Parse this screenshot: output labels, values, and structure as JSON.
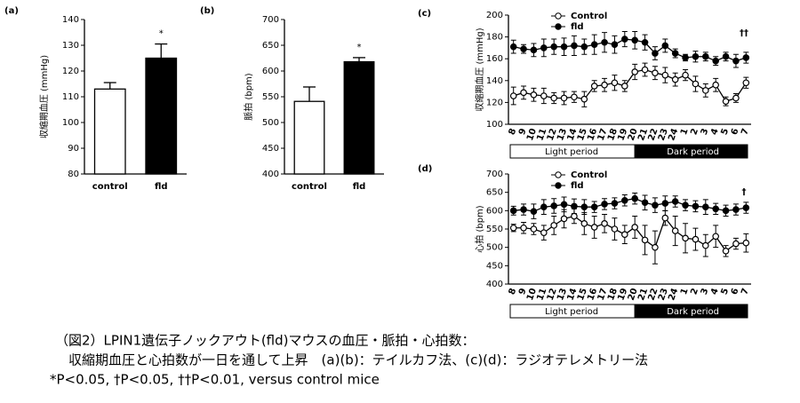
{
  "chart_data": [
    {
      "type": "bar",
      "panel_label": "(a)",
      "y_label": "収縮期血圧 (mmHg)",
      "categories": [
        "control",
        "fld"
      ],
      "values": [
        113,
        125
      ],
      "errors": [
        2.5,
        5.5
      ],
      "colors": [
        "#ffffff",
        "#000000"
      ],
      "ylim": [
        80,
        140
      ],
      "yticks": [
        80,
        90,
        100,
        110,
        120,
        130,
        140
      ],
      "annotation": "*"
    },
    {
      "type": "bar",
      "panel_label": "(b)",
      "y_label": "脈拍 (bpm)",
      "categories": [
        "control",
        "fld"
      ],
      "values": [
        541,
        618
      ],
      "errors": [
        28,
        8
      ],
      "colors": [
        "#ffffff",
        "#000000"
      ],
      "ylim": [
        400,
        700
      ],
      "yticks": [
        400,
        450,
        500,
        550,
        600,
        650,
        700
      ],
      "annotation": "*"
    },
    {
      "type": "line",
      "panel_label": "(c)",
      "y_label": "収縮期血圧 (mmHg)",
      "categories": [
        "8",
        "9",
        "10",
        "11",
        "12",
        "13",
        "14",
        "15",
        "16",
        "17",
        "18",
        "19",
        "20",
        "21",
        "22",
        "23",
        "24",
        "1",
        "2",
        "3",
        "4",
        "5",
        "6",
        "7"
      ],
      "series": [
        {
          "name": "Control",
          "color": "#000000",
          "marker": "open",
          "values": [
            126,
            129,
            127,
            126,
            124,
            124,
            125,
            123,
            135,
            136,
            138,
            135,
            148,
            150,
            147,
            145,
            141,
            145,
            137,
            131,
            136,
            121,
            124,
            138
          ],
          "errors": [
            8,
            6,
            6,
            7,
            5,
            6,
            5,
            7,
            5,
            6,
            7,
            5,
            7,
            6,
            6,
            7,
            6,
            5,
            7,
            6,
            6,
            4,
            4,
            5
          ]
        },
        {
          "name": "fld",
          "color": "#000000",
          "marker": "filled",
          "values": [
            171,
            169,
            168,
            170,
            171,
            171,
            172,
            171,
            173,
            175,
            173,
            178,
            177,
            175,
            165,
            172,
            165,
            161,
            162,
            162,
            158,
            162,
            158,
            161
          ],
          "errors": [
            6,
            4,
            6,
            8,
            7,
            8,
            9,
            7,
            9,
            9,
            8,
            7,
            8,
            7,
            6,
            6,
            4,
            3,
            5,
            4,
            4,
            4,
            6,
            5
          ]
        }
      ],
      "periods": [
        "Light period",
        "Dark period"
      ],
      "ylim": [
        100,
        200
      ],
      "yticks": [
        100,
        120,
        140,
        160,
        180,
        200
      ],
      "annotation": "††"
    },
    {
      "type": "line",
      "panel_label": "(d)",
      "y_label": "心拍 (bpm)",
      "categories": [
        "8",
        "9",
        "10",
        "11",
        "12",
        "13",
        "14",
        "15",
        "16",
        "17",
        "18",
        "19",
        "20",
        "21",
        "22",
        "23",
        "24",
        "1",
        "2",
        "3",
        "4",
        "5",
        "6",
        "7"
      ],
      "series": [
        {
          "name": "Control",
          "color": "#000000",
          "marker": "open",
          "values": [
            553,
            553,
            550,
            540,
            560,
            578,
            585,
            565,
            555,
            565,
            550,
            535,
            555,
            520,
            500,
            580,
            545,
            525,
            522,
            505,
            530,
            490,
            510,
            512
          ],
          "errors": [
            10,
            15,
            15,
            20,
            25,
            25,
            20,
            30,
            30,
            25,
            30,
            25,
            30,
            40,
            45,
            20,
            40,
            40,
            30,
            30,
            30,
            15,
            15,
            25
          ]
        },
        {
          "name": "fld",
          "color": "#000000",
          "marker": "filled",
          "values": [
            600,
            603,
            598,
            610,
            613,
            617,
            612,
            610,
            610,
            618,
            620,
            628,
            633,
            622,
            615,
            620,
            625,
            615,
            612,
            610,
            605,
            600,
            603,
            608
          ],
          "errors": [
            12,
            15,
            20,
            20,
            20,
            20,
            20,
            20,
            15,
            15,
            15,
            15,
            15,
            20,
            20,
            20,
            15,
            15,
            15,
            20,
            15,
            15,
            15,
            15
          ]
        }
      ],
      "periods": [
        "Light period",
        "Dark period"
      ],
      "ylim": [
        400,
        700
      ],
      "yticks": [
        400,
        450,
        500,
        550,
        600,
        650,
        700
      ],
      "annotation": "†"
    }
  ],
  "caption": [
    "（図2）LPIN1遺伝子ノックアウト(fld)マウスの血圧・脈拍・心拍数：",
    "　収縮期血圧と心拍数が一日を通して上昇　(a)(b)：テイルカフ法、(c)(d)：ラジオテレメトリー法",
    "*P<0.05, †P<0.05, ††P<0.01, versus control mice"
  ]
}
